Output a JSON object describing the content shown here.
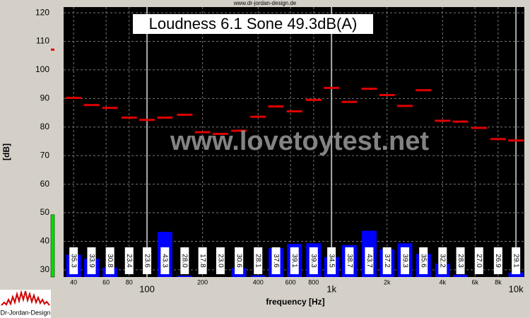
{
  "chart_data": {
    "type": "bar",
    "title": "Loudness 6.1 Sone 49.3dB(A)",
    "top_text": "www.dr-jordan-design.de",
    "watermark": "www.lovetoytest.net",
    "x_label": "frequency [Hz]",
    "y_label": "[dB]",
    "logo_text": "Dr-Jordan-Design",
    "log_x": true,
    "grid": true,
    "xlim": [
      35.3,
      11100
    ],
    "ylim": [
      27.5,
      122
    ],
    "yticks": [
      30,
      40,
      50,
      60,
      70,
      80,
      90,
      100,
      110,
      120
    ],
    "xticks": [
      40,
      60,
      80,
      100,
      200,
      400,
      600,
      800,
      {
        "value": 1000,
        "label": "1k"
      },
      {
        "value": 2000,
        "label": "2k"
      },
      {
        "value": 4000,
        "label": "4k"
      },
      {
        "value": 6000,
        "label": "6k"
      },
      {
        "value": 8000,
        "label": "8k"
      },
      {
        "value": 10000,
        "label": "10k"
      }
    ],
    "x": [
      40,
      50,
      63,
      80,
      100,
      125,
      160,
      200,
      250,
      315,
      400,
      500,
      630,
      800,
      1000,
      1250,
      1600,
      2000,
      2500,
      3150,
      4000,
      5000,
      6300,
      8000,
      10000
    ],
    "bands": {
      "color": "#0000ff",
      "values": [
        35.3,
        33.9,
        30.8,
        23.4,
        23.6,
        43.3,
        28.0,
        17.8,
        23.0,
        30.6,
        28.1,
        37.6,
        39.1,
        39.3,
        34.5,
        38.7,
        43.7,
        37.2,
        39.3,
        35.6,
        32.2,
        28.3,
        27.0,
        26.9,
        29.1
      ],
      "value_labels": [
        "35.3",
        "33.9",
        "30.8",
        "23.4",
        "23.6",
        "43.3",
        "28.0",
        "17.8",
        "23.0",
        "30.6",
        "28.1",
        "37.6",
        "39.1",
        "39.3",
        "34.5",
        "38.7",
        "43.7",
        "37.2",
        "39.3",
        "35.6",
        "32.2",
        "28.3",
        "27.0",
        "26.9",
        "29.1"
      ]
    },
    "levels": {
      "color": "#e00000",
      "values": [
        90.2,
        87.7,
        86.7,
        83.3,
        82.5,
        83.3,
        84.3,
        78.2,
        77.6,
        78.7,
        83.6,
        87.2,
        85.5,
        89.5,
        93.7,
        88.8,
        93.4,
        91.2,
        87.4,
        92.9,
        82.2,
        81.9,
        79.7,
        75.8,
        75.3
      ]
    },
    "level_meter": {
      "value": 49.3,
      "color": "#00e000"
    },
    "peak_marker": {
      "value": 107.1,
      "color": "#e00000"
    }
  }
}
